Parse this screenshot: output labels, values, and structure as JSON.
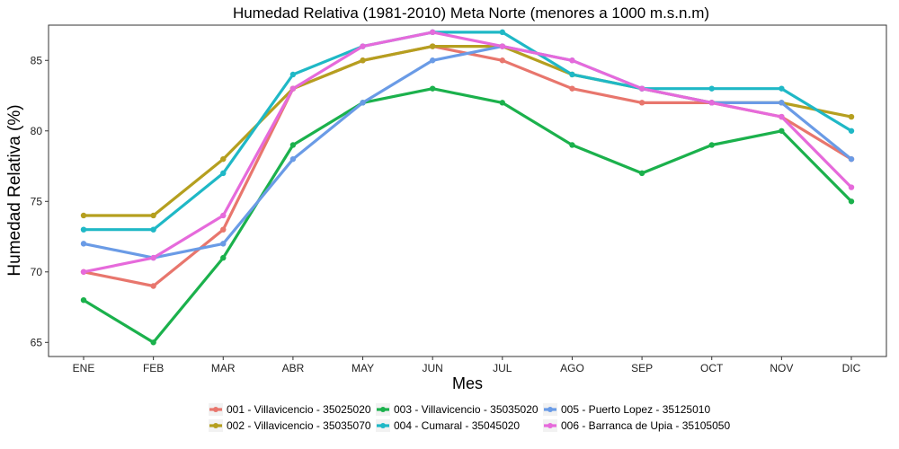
{
  "chart_data": {
    "type": "line",
    "title": "Humedad Relativa (1981-2010) Meta Norte (menores a 1000 m.s.n.m)",
    "xlabel": "Mes",
    "ylabel": "Humedad Relativa (%)",
    "categories": [
      "ENE",
      "FEB",
      "MAR",
      "ABR",
      "MAY",
      "JUN",
      "JUL",
      "AGO",
      "SEP",
      "OCT",
      "NOV",
      "DIC"
    ],
    "ylim": [
      64,
      87.5
    ],
    "yticks": [
      65,
      70,
      75,
      80,
      85
    ],
    "grid": false,
    "legend_position": "bottom",
    "series": [
      {
        "name": "001 - Villavicencio - 35025020",
        "color": "#E8766D",
        "values": [
          70,
          69,
          73,
          83,
          85,
          86,
          85,
          83,
          82,
          82,
          81,
          78
        ]
      },
      {
        "name": "002 - Villavicencio - 35035070",
        "color": "#B59F1F",
        "values": [
          74,
          74,
          78,
          83,
          85,
          86,
          86,
          84,
          83,
          82,
          82,
          81
        ]
      },
      {
        "name": "003 - Villavicencio - 35035020",
        "color": "#1BB14C",
        "values": [
          68,
          65,
          71,
          79,
          82,
          83,
          82,
          79,
          77,
          79,
          80,
          75
        ]
      },
      {
        "name": "004 - Cumaral - 35045020",
        "color": "#1FB8C6",
        "values": [
          73,
          73,
          77,
          84,
          86,
          87,
          87,
          84,
          83,
          83,
          83,
          80
        ]
      },
      {
        "name": "005 - Puerto Lopez - 35125010",
        "color": "#6A9BE6",
        "values": [
          72,
          71,
          72,
          78,
          82,
          85,
          86,
          85,
          83,
          82,
          82,
          78
        ]
      },
      {
        "name": "006 - Barranca de Upia - 35105050",
        "color": "#E66ADB",
        "values": [
          70,
          71,
          74,
          83,
          86,
          87,
          86,
          85,
          83,
          82,
          81,
          76
        ]
      }
    ]
  }
}
